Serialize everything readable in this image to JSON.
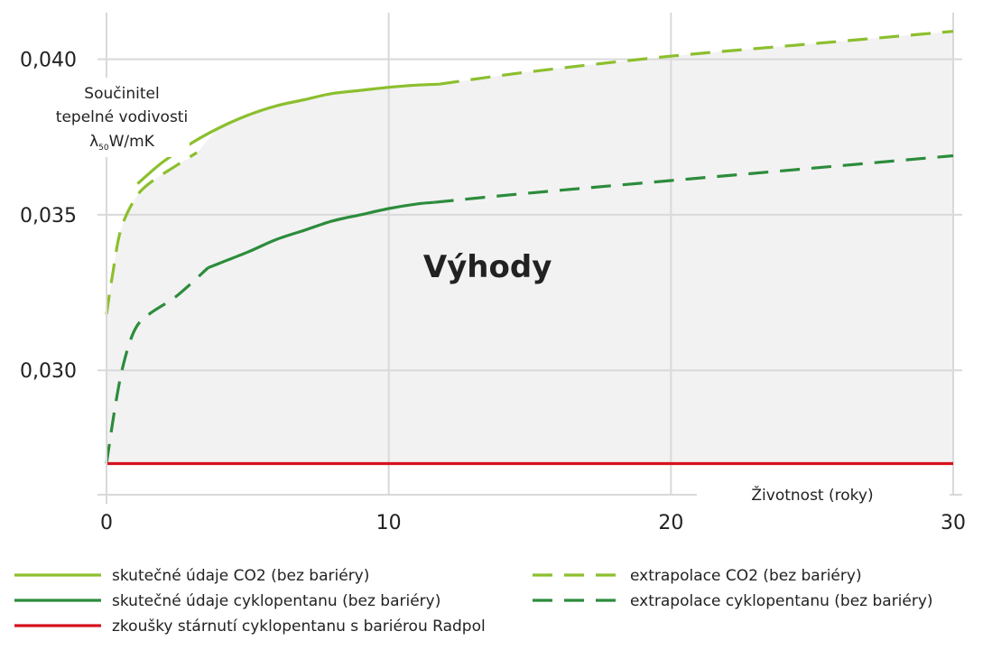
{
  "chart_data": {
    "type": "line",
    "xlabel": "Životnost (roky)",
    "ylabel_lines": [
      "Součinitel",
      "tepelné vodivosti",
      "λ",
      "50",
      "W/mK"
    ],
    "xlim": [
      0,
      30
    ],
    "ylim": [
      0.026,
      0.0415
    ],
    "x_ticks": [
      {
        "value": 0,
        "label": "0"
      },
      {
        "value": 10,
        "label": "10"
      },
      {
        "value": 20,
        "label": "20"
      },
      {
        "value": 30,
        "label": "30"
      }
    ],
    "y_ticks": [
      {
        "value": 0.03,
        "label": "0,030"
      },
      {
        "value": 0.035,
        "label": "0,035"
      },
      {
        "value": 0.04,
        "label": "0,040"
      }
    ],
    "annotation": "Výhody",
    "annotation_at": {
      "x": 13.5,
      "y": 0.033
    },
    "shaded_region": {
      "between": [
        "extrapolace CO2 (bez bariéry)",
        "zkoušky stárnutí cyklopentanu s bariérou Radpol"
      ],
      "color": "#f2f2f2"
    },
    "series": [
      {
        "name": "skutečné údaje CO2 (bez bariéry)",
        "color": "#8cbf2e",
        "dashed": false,
        "x": [
          1.1,
          2,
          3,
          4,
          5,
          6,
          7,
          8,
          9,
          10,
          11,
          11.8
        ],
        "y": [
          0.036,
          0.0367,
          0.0373,
          0.0378,
          0.0382,
          0.0385,
          0.0387,
          0.0389,
          0.039,
          0.0391,
          0.03917,
          0.0392
        ]
      },
      {
        "name": "extrapolace CO2 (bez bariéry)",
        "color": "#8cbf2e",
        "dashed": true,
        "x": [
          0,
          0.2,
          0.5,
          1.0,
          1.5,
          2.5,
          3.2
        ],
        "y": [
          0.0318,
          0.033,
          0.0345,
          0.0355,
          0.036,
          0.0366,
          0.037
        ]
      },
      {
        "name": "extrapolace CO2 (bez bariéry) – pokračování",
        "color": "#8cbf2e",
        "dashed": true,
        "x": [
          11.8,
          15,
          20,
          25,
          30
        ],
        "y": [
          0.0392,
          0.0396,
          0.0401,
          0.0405,
          0.0409
        ]
      },
      {
        "name": "skutečné údaje cyklopentanu (bez bariéry)",
        "color": "#2c8c3c",
        "dashed": false,
        "x": [
          3.6,
          5,
          6,
          7,
          8,
          9,
          10,
          11,
          11.6
        ],
        "y": [
          0.0333,
          0.0338,
          0.0342,
          0.0345,
          0.0348,
          0.035,
          0.0352,
          0.03535,
          0.0354
        ]
      },
      {
        "name": "extrapolace cyklopentanu (bez bariéry)",
        "color": "#2c8c3c",
        "dashed": true,
        "x": [
          0,
          0.3,
          0.6,
          1.0,
          1.5,
          2.5,
          3.6
        ],
        "y": [
          0.027,
          0.0288,
          0.0302,
          0.0313,
          0.0318,
          0.0324,
          0.0333
        ]
      },
      {
        "name": "extrapolace cyklopentanu (bez bariéry) – pokračování",
        "color": "#2c8c3c",
        "dashed": true,
        "x": [
          11.6,
          15,
          20,
          25,
          30
        ],
        "y": [
          0.0354,
          0.0357,
          0.0361,
          0.0365,
          0.0369
        ]
      },
      {
        "name": "zkoušky stárnutí cyklopentanu s bariérou Radpol",
        "color": "#d6131f",
        "dashed": false,
        "x": [
          0,
          30
        ],
        "y": [
          0.027,
          0.027
        ]
      }
    ],
    "legend": [
      {
        "label": "skutečné údaje CO2 (bez bariéry)",
        "color": "#8cbf2e",
        "dashed": false
      },
      {
        "label": "extrapolace CO2 (bez bariéry)",
        "color": "#8cbf2e",
        "dashed": true
      },
      {
        "label": "skutečné údaje cyklopentanu (bez bariéry)",
        "color": "#2c8c3c",
        "dashed": false
      },
      {
        "label": "extrapolace cyklopentanu (bez bariéry)",
        "color": "#2c8c3c",
        "dashed": true
      },
      {
        "label": "zkoušky stárnutí cyklopentanu s bariérou Radpol",
        "color": "#d6131f",
        "dashed": false
      }
    ]
  }
}
